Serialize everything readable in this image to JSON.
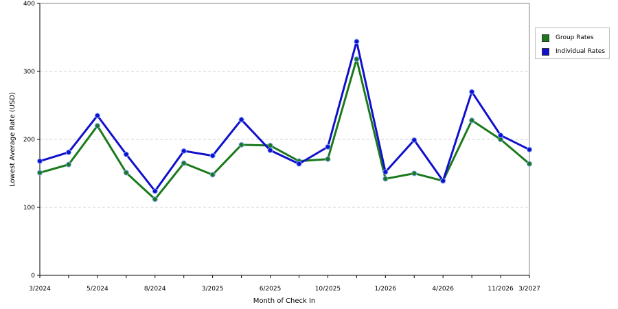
{
  "chart_data": {
    "type": "line",
    "xlabel": "Month of Check In",
    "ylabel": "Lowest Average Rate (USD)",
    "ylim": [
      0,
      400
    ],
    "yticks": [
      0,
      100,
      200,
      300,
      400
    ],
    "grid": true,
    "legend_position": "right",
    "x_tick_labels": [
      "3/2024",
      "5/2024",
      "8/2024",
      "3/2025",
      "6/2025",
      "10/2025",
      "1/2026",
      "4/2026",
      "11/2026",
      "3/2027"
    ],
    "series": [
      {
        "name": "Group Rates",
        "color": "#1a7a1a",
        "values": [
          151,
          163,
          220,
          151,
          112,
          165,
          148,
          192,
          191,
          168,
          171,
          318,
          142,
          150,
          139,
          228,
          200,
          164
        ]
      },
      {
        "name": "Individual Rates",
        "color": "#1010cc",
        "values": [
          168,
          181,
          235,
          178,
          124,
          183,
          176,
          229,
          184,
          164,
          189,
          344,
          152,
          199,
          139,
          270,
          206,
          185
        ]
      }
    ]
  }
}
